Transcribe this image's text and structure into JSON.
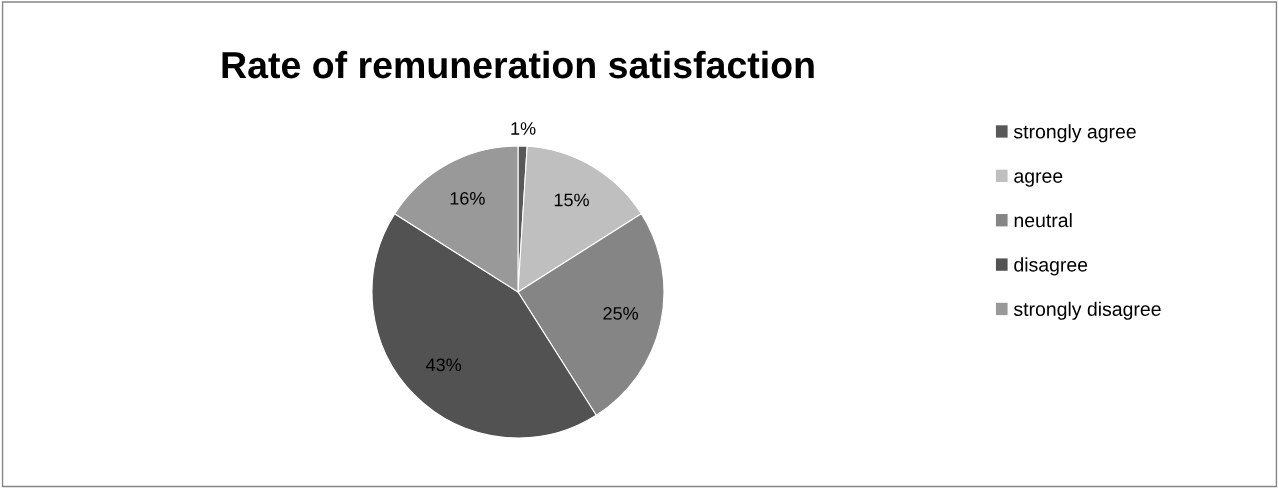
{
  "chart_data": {
    "type": "pie",
    "title": "Rate of remuneration satisfaction",
    "categories": [
      "strongly agree",
      "agree",
      "neutral",
      "disagree",
      "strongly disagree"
    ],
    "values": [
      1,
      15,
      25,
      43,
      16
    ],
    "value_labels": [
      "1%",
      "15%",
      "25%",
      "43%",
      "16%"
    ],
    "colors": [
      "#595959",
      "#bfbfbf",
      "#858585",
      "#525252",
      "#999999"
    ],
    "legend": "right"
  }
}
